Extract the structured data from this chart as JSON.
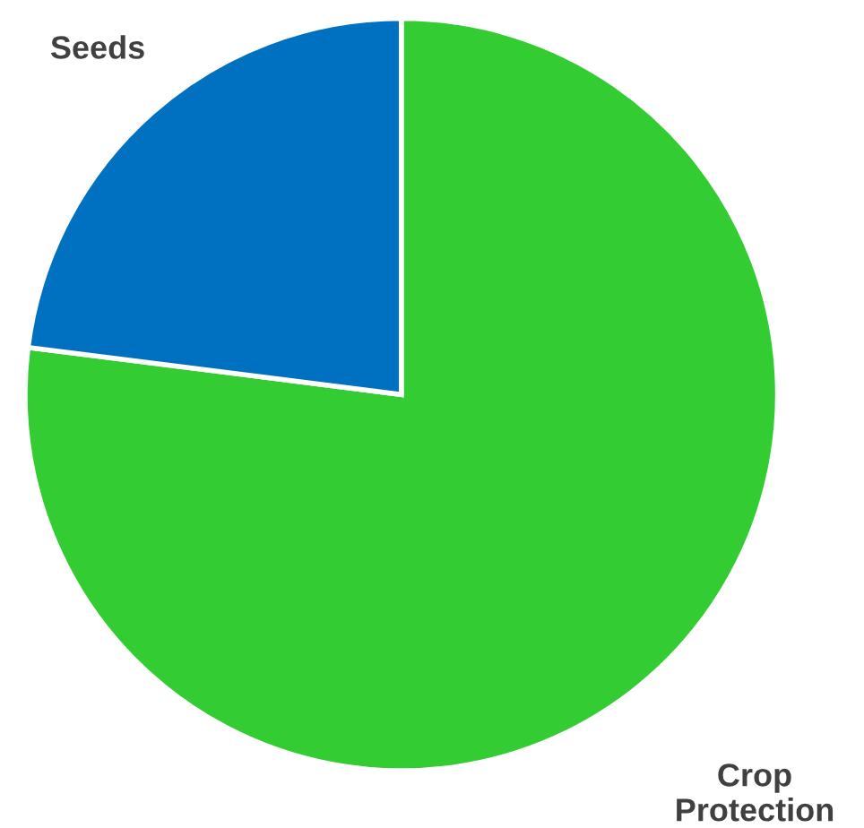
{
  "chart_data": {
    "type": "pie",
    "categories": [
      "Crop Protection",
      "Seeds"
    ],
    "values": [
      77,
      23
    ],
    "colors": [
      "#33cc33",
      "#0070c0"
    ]
  }
}
